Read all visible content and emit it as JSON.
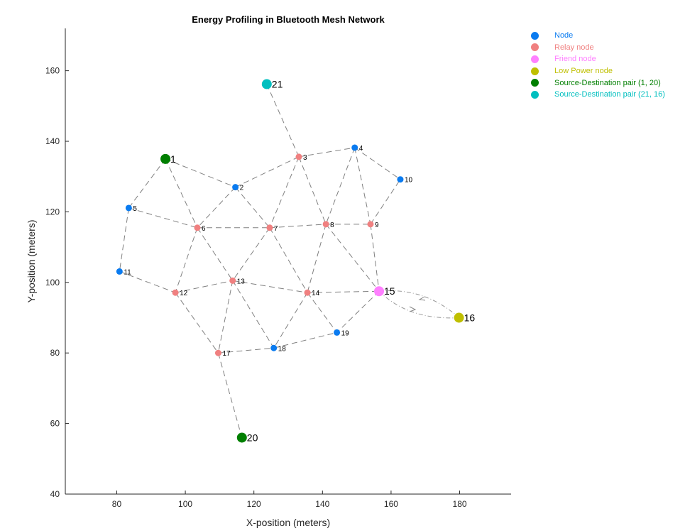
{
  "chart_data": {
    "type": "scatter",
    "title": "Energy Profiling in Bluetooth Mesh Network",
    "xlabel": "X-position (meters)",
    "ylabel": "Y-position (meters)",
    "xlim": [
      65,
      195
    ],
    "ylim": [
      40,
      172
    ],
    "xticks": [
      80,
      100,
      120,
      140,
      160,
      180
    ],
    "yticks": [
      40,
      60,
      80,
      100,
      120,
      140,
      160
    ],
    "grid": false,
    "legend_position": "outside-top-right",
    "categories": {
      "node": {
        "label": "Node",
        "color": "#0a7bf0"
      },
      "relay": {
        "label": "Relay node",
        "color": "#f08080"
      },
      "friend": {
        "label": "Friend node",
        "color": "#ff80ff"
      },
      "lowpower": {
        "label": "Low Power node",
        "color": "#bfbf00"
      },
      "sd1": {
        "label": "Source-Destination pair (1, 20)",
        "color": "#007f00"
      },
      "sd2": {
        "label": "Source-Destination pair (21, 16)",
        "color": "#00bfbf"
      }
    },
    "legend_order": [
      "node",
      "relay",
      "friend",
      "lowpower",
      "sd1",
      "sd2"
    ],
    "nodes": [
      {
        "id": 1,
        "x": 94.2,
        "y": 135.0,
        "type": "sd1"
      },
      {
        "id": 2,
        "x": 114.6,
        "y": 127.0,
        "type": "node"
      },
      {
        "id": 3,
        "x": 133.1,
        "y": 135.6,
        "type": "relay"
      },
      {
        "id": 4,
        "x": 149.4,
        "y": 138.2,
        "type": "node"
      },
      {
        "id": 5,
        "x": 83.5,
        "y": 121.1,
        "type": "node"
      },
      {
        "id": 6,
        "x": 103.5,
        "y": 115.5,
        "type": "relay"
      },
      {
        "id": 7,
        "x": 124.6,
        "y": 115.5,
        "type": "relay"
      },
      {
        "id": 8,
        "x": 141.0,
        "y": 116.5,
        "type": "relay"
      },
      {
        "id": 9,
        "x": 154.0,
        "y": 116.5,
        "type": "relay"
      },
      {
        "id": 10,
        "x": 162.7,
        "y": 129.2,
        "type": "node"
      },
      {
        "id": 11,
        "x": 80.8,
        "y": 103.1,
        "type": "node"
      },
      {
        "id": 12,
        "x": 97.1,
        "y": 97.1,
        "type": "relay"
      },
      {
        "id": 13,
        "x": 113.8,
        "y": 100.5,
        "type": "relay"
      },
      {
        "id": 14,
        "x": 135.6,
        "y": 97.1,
        "type": "relay"
      },
      {
        "id": 15,
        "x": 156.5,
        "y": 97.5,
        "type": "friend"
      },
      {
        "id": 16,
        "x": 179.8,
        "y": 90.0,
        "type": "lowpower"
      },
      {
        "id": 17,
        "x": 109.6,
        "y": 80.0,
        "type": "relay"
      },
      {
        "id": 18,
        "x": 125.8,
        "y": 81.4,
        "type": "node"
      },
      {
        "id": 19,
        "x": 144.2,
        "y": 85.8,
        "type": "node"
      },
      {
        "id": 20,
        "x": 116.5,
        "y": 56.0,
        "type": "sd1"
      },
      {
        "id": 21,
        "x": 123.75,
        "y": 156.2,
        "type": "sd2"
      }
    ],
    "edges": [
      [
        1,
        2
      ],
      [
        1,
        5
      ],
      [
        1,
        6
      ],
      [
        2,
        3
      ],
      [
        2,
        6
      ],
      [
        2,
        7
      ],
      [
        3,
        4
      ],
      [
        3,
        7
      ],
      [
        3,
        8
      ],
      [
        3,
        21
      ],
      [
        4,
        8
      ],
      [
        4,
        9
      ],
      [
        4,
        10
      ],
      [
        9,
        10
      ],
      [
        5,
        6
      ],
      [
        5,
        11
      ],
      [
        6,
        7
      ],
      [
        6,
        12
      ],
      [
        6,
        13
      ],
      [
        7,
        8
      ],
      [
        7,
        13
      ],
      [
        7,
        14
      ],
      [
        8,
        9
      ],
      [
        8,
        14
      ],
      [
        8,
        15
      ],
      [
        9,
        15
      ],
      [
        11,
        12
      ],
      [
        12,
        13
      ],
      [
        12,
        17
      ],
      [
        13,
        14
      ],
      [
        13,
        17
      ],
      [
        13,
        18
      ],
      [
        14,
        15
      ],
      [
        14,
        18
      ],
      [
        14,
        19
      ],
      [
        15,
        19
      ],
      [
        17,
        18
      ],
      [
        18,
        19
      ],
      [
        17,
        20
      ]
    ],
    "friendship_link": [
      15,
      16
    ]
  }
}
